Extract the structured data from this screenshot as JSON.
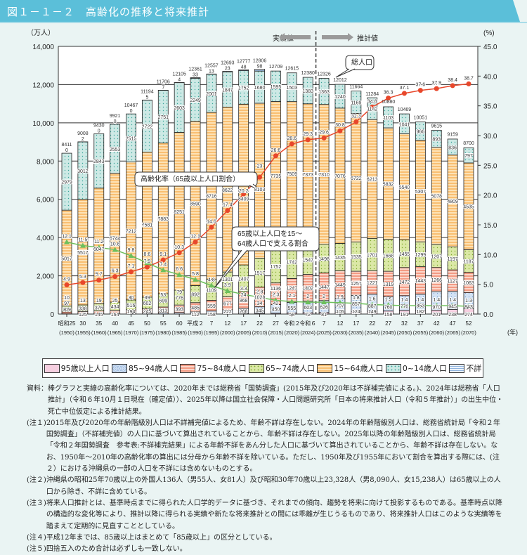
{
  "header": {
    "title": "図１－１－２　高齢化の推移と将来推計"
  },
  "chart_data": {
    "type": "bar",
    "stacked": true,
    "yunit_left": "（万人）",
    "yunit_right": "(%)",
    "xunit": "(年)",
    "ylim_left": [
      0,
      14000
    ],
    "ylim_right": [
      0,
      45
    ],
    "yticks_left": [
      "0",
      "2,000",
      "4,000",
      "6,000",
      "8,000",
      "10,000",
      "12,000",
      "14,000"
    ],
    "yticks_right": [
      "0.0",
      "5.0",
      "10.0",
      "15.0",
      "20.0",
      "25.0",
      "30.0",
      "35.0",
      "40.0",
      "45.0"
    ],
    "grid": true,
    "divider_labels": {
      "actual": "実績値",
      "projected": "推計値"
    },
    "callouts": {
      "total": "総人口",
      "aging_rate": "高齢化率（65歳以上人口割合）",
      "support_line1": "65歳以上人口を15～",
      "support_line2": "64歳人口で支える割合"
    },
    "categories_era": [
      "昭和25",
      "30",
      "35",
      "40",
      "45",
      "50",
      "55",
      "60",
      "平成２",
      "7",
      "12",
      "17",
      "22",
      "27",
      "令和２",
      "令和６",
      "7",
      "12",
      "17",
      "22",
      "27",
      "32",
      "37",
      "42",
      "47",
      "52"
    ],
    "categories_year": [
      "(1950)",
      "(1955)",
      "(1960)",
      "(1965)",
      "(1970)",
      "(1975)",
      "(1980)",
      "(1985)",
      "(1990)",
      "(1995)",
      "(2000)",
      "(2005)",
      "(2010)",
      "(2015)",
      "(2020)",
      "(2024)",
      "(2025)",
      "(2030)",
      "(2035)",
      "(2040)",
      "(2045)",
      "(2050)",
      "(2055)",
      "(2060)",
      "(2065)",
      "(2070)"
    ],
    "total": [
      8411,
      9008,
      9430,
      9921,
      10467,
      11194,
      11706,
      12105,
      12361,
      12557,
      12693,
      12777,
      12806,
      12709,
      12615,
      12380,
      12326,
      12012,
      11664,
      11284,
      10880,
      10469,
      10051,
      9615,
      9159,
      8700
    ],
    "series": [
      {
        "name": "95歳以上人口",
        "color": "#f6cfe0",
        "values": [
          null,
          null,
          null,
          null,
          null,
          null,
          null,
          null,
          null,
          null,
          null,
          24,
          34,
          42,
          58,
          72,
          81,
          105,
          124,
          149,
          158,
          191,
          182,
          201,
          238,
          274
        ]
      },
      {
        "name": "85~94歳人口",
        "color": "#d3e2f4",
        "values": [
          10,
          13,
          19,
          25,
          30,
          39,
          53,
          79,
          112,
          158,
          222,
          268,
          345,
          450,
          555,
          603,
          626,
          707,
          857,
          887,
          760,
          770,
          853,
          970,
          945,
          843
        ]
      },
      {
        "name": "75~84歳人口",
        "color": "#f5a48d",
        "values": [
          97,
          125,
          145,
          164,
          194,
          245,
          313,
          393,
          485,
          559,
          677,
          868,
          1028,
          1136,
          1247,
          1402,
          1447,
          1449,
          1257,
          1221,
          1319,
          1472,
          1443,
          1266,
          1127,
          1063
        ]
      },
      {
        "name": "65~74歳人口",
        "color": "#dbe8a6",
        "values": [
          309,
          338,
          376,
          434,
          516,
          602,
          699,
          776,
          892,
          1109,
          1301,
          1407,
          1517,
          1752,
          1742,
          1547,
          1498,
          1435,
          1535,
          1701,
          1668,
          1455,
          1299,
          1207,
          1197,
          1187
        ]
      },
      {
        "name": "15~64歳人口",
        "color": "#f9bf72",
        "values": [
          5017,
          5517,
          6047,
          6744,
          7212,
          7581,
          7883,
          8251,
          8590,
          8716,
          8622,
          8409,
          8103,
          7735,
          7509,
          7373,
          7310,
          7076,
          6722,
          6213,
          5832,
          5540,
          5307,
          5078,
          4809,
          4535
        ]
      },
      {
        "name": "0~14歳人口",
        "color": "#cde9e5",
        "values": [
          2979,
          3012,
          2843,
          2553,
          2515,
          2722,
          2751,
          2603,
          2249,
          2001,
          1847,
          1752,
          1680,
          1595,
          1503,
          1383,
          1363,
          1240,
          1169,
          1142,
          1103,
          1041,
          966,
          893,
          836,
          797
        ]
      },
      {
        "name": "不詳",
        "color": "#c9dcf0",
        "values": [
          0,
          2,
          0,
          0,
          0,
          5,
          7,
          4,
          33,
          13,
          23,
          48,
          98,
          null,
          null,
          null,
          null,
          null,
          null,
          null,
          null,
          null,
          null,
          null,
          null,
          null
        ]
      }
    ],
    "lines": [
      {
        "name": "高齢化率",
        "axis": "right",
        "color": "#e8472b",
        "values": [
          4.9,
          5.3,
          5.7,
          6.3,
          7.1,
          7.9,
          9.1,
          10.3,
          12.1,
          14.6,
          17.4,
          20.2,
          23.0,
          26.6,
          28.6,
          29.3,
          29.6,
          30.8,
          32.3,
          34.8,
          36.3,
          37.1,
          37.6,
          37.9,
          38.4,
          38.7
        ]
      },
      {
        "name": "支える割合",
        "axis": "right",
        "color": "#6cbf5c",
        "values": [
          12.1,
          11.5,
          11.2,
          10.8,
          9.8,
          8.6,
          7.4,
          6.6,
          5.8,
          4.8,
          3.9,
          3.3,
          2.8,
          2.3,
          2.1,
          2.0,
          2.0,
          1.9,
          1.8,
          1.6,
          1.5,
          1.4,
          1.4,
          1.4,
          1.4,
          1.3
        ]
      }
    ]
  },
  "notes": [
    {
      "key": "資料：",
      "text": "棒グラフと実線の高齢化率については、2020年までは総務省「国勢調査」(2015年及び2020年は不詳補完値による。)、2024年は総務省「人口推計」（令和６年10月１日現在（確定値））、2025年以降は国立社会保障・人口問題研究所「日本の将来推計人口（令和５年推計）」の出生中位・死亡中位仮定による推計結果。"
    },
    {
      "key": "(注１)",
      "text": "2015年及び2020年の年齢階級別人口は不詳補完値によるため、年齢不詳は存在しない。2024年の年齢階級別人口は、総務省統計局「令和２年国勢調査」（不詳補完値）の人口に基づいて算出されていることから、年齢不詳は存在しない。2025年以降の年齢階級別人口は、総務省統計局「令和２年国勢調査　参考表:不詳補完結果」による年齢不詳をあん分した人口に基づいて算出されていることから、年齢不詳は存在しない。なお、1950年～2010年の高齢化率の算出には分母から年齢不詳を除いている。ただし、1950年及び1955年において割合を算出する際には、(注２）における沖縄県の一部の人口を不詳には含めないものとする。"
    },
    {
      "key": "(注２)",
      "text": "沖縄県の昭和25年70歳以上の外国人136人（男55人、女81人）及び昭和30年70歳以上23,328人（男8,090人、女15,238人）は65歳以上の人口から除き、不詳に含めている。"
    },
    {
      "key": "(注３)",
      "text": "将来人口推計とは、基準時点までに得られた人口学的データに基づき、それまでの傾向、趨勢を将来に向けて投影するものである。基準時点以降の構造的な変化等により、推計以降に得られる実績や新たな将来推計との間には乖離が生じうるものであり、将来推計人口はこのような実績等を踏まえて定期的に見直すこととしている。"
    },
    {
      "key": "(注４)",
      "text": "平成12年までは、85歳以上はまとめて「85歳以上」の区分としている。"
    },
    {
      "key": "(注５)",
      "text": "四捨五入のため合計は必ずしも一致しない。"
    }
  ]
}
